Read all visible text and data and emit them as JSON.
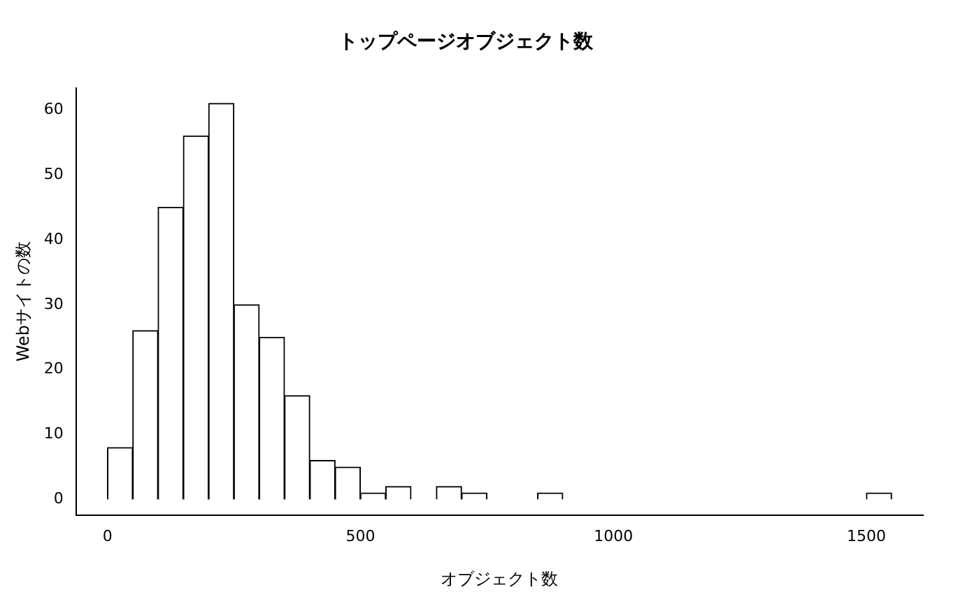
{
  "chart_data": {
    "type": "histogram",
    "title": "トップページオブジェクト数",
    "xlabel": "オブジェクト数",
    "ylabel": "Webサイトの数",
    "bins": [
      0,
      50,
      100,
      150,
      200,
      250,
      300,
      350,
      400,
      450,
      500,
      550,
      600,
      650,
      700,
      750,
      800,
      850,
      900,
      950,
      1000,
      1050,
      1100,
      1150,
      1200,
      1250,
      1300,
      1350,
      1400,
      1450,
      1500,
      1550
    ],
    "values": [
      8,
      26,
      45,
      56,
      61,
      30,
      25,
      16,
      6,
      5,
      1,
      2,
      0,
      2,
      1,
      0,
      0,
      1,
      0,
      0,
      0,
      0,
      0,
      0,
      0,
      0,
      0,
      0,
      0,
      0,
      1
    ],
    "color": "#ffffff",
    "xlim": [
      -62,
      1612
    ],
    "ylim": [
      -2.4,
      63.4
    ],
    "xticks": [
      0,
      500,
      1000,
      1500
    ],
    "yticks": [
      0,
      10,
      20,
      30,
      40,
      50,
      60
    ],
    "grid": false,
    "legend": false
  }
}
